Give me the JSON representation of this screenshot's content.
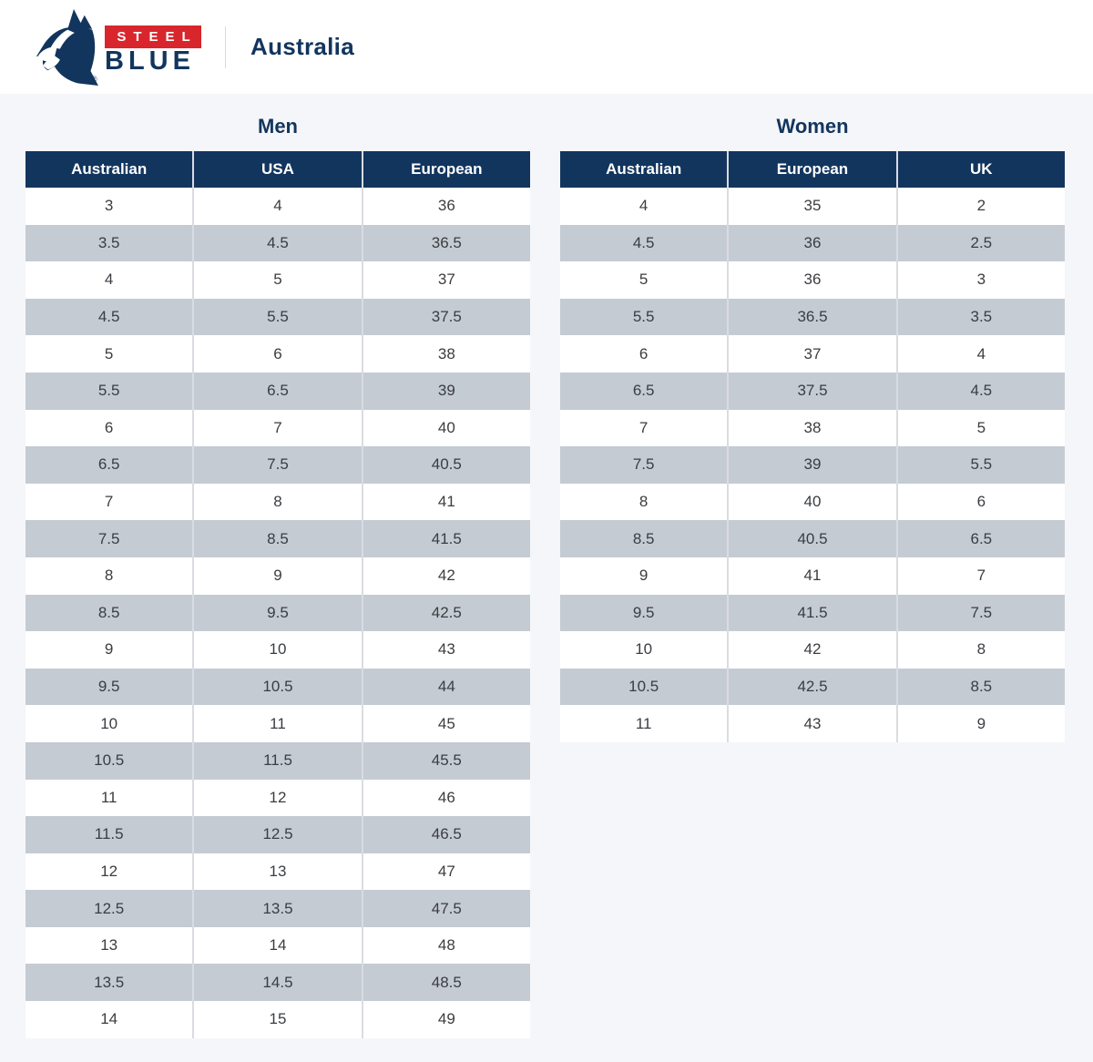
{
  "brand": {
    "steel": "STEEL",
    "blue": "BLUE",
    "registered": "®",
    "region": "Australia"
  },
  "colors": {
    "navy": "#12355e",
    "red": "#d8262c",
    "row_alt": "#c5cbd3",
    "page_bg": "#f5f6f9",
    "separator": "#d9dce1",
    "cell_text": "#3a3d41"
  },
  "men": {
    "title": "Men",
    "headers": [
      "Australian",
      "USA",
      "European"
    ],
    "rows": [
      [
        "3",
        "4",
        "36"
      ],
      [
        "3.5",
        "4.5",
        "36.5"
      ],
      [
        "4",
        "5",
        "37"
      ],
      [
        "4.5",
        "5.5",
        "37.5"
      ],
      [
        "5",
        "6",
        "38"
      ],
      [
        "5.5",
        "6.5",
        "39"
      ],
      [
        "6",
        "7",
        "40"
      ],
      [
        "6.5",
        "7.5",
        "40.5"
      ],
      [
        "7",
        "8",
        "41"
      ],
      [
        "7.5",
        "8.5",
        "41.5"
      ],
      [
        "8",
        "9",
        "42"
      ],
      [
        "8.5",
        "9.5",
        "42.5"
      ],
      [
        "9",
        "10",
        "43"
      ],
      [
        "9.5",
        "10.5",
        "44"
      ],
      [
        "10",
        "11",
        "45"
      ],
      [
        "10.5",
        "11.5",
        "45.5"
      ],
      [
        "11",
        "12",
        "46"
      ],
      [
        "11.5",
        "12.5",
        "46.5"
      ],
      [
        "12",
        "13",
        "47"
      ],
      [
        "12.5",
        "13.5",
        "47.5"
      ],
      [
        "13",
        "14",
        "48"
      ],
      [
        "13.5",
        "14.5",
        "48.5"
      ],
      [
        "14",
        "15",
        "49"
      ]
    ]
  },
  "women": {
    "title": "Women",
    "headers": [
      "Australian",
      "European",
      "UK"
    ],
    "rows": [
      [
        "4",
        "35",
        "2"
      ],
      [
        "4.5",
        "36",
        "2.5"
      ],
      [
        "5",
        "36",
        "3"
      ],
      [
        "5.5",
        "36.5",
        "3.5"
      ],
      [
        "6",
        "37",
        "4"
      ],
      [
        "6.5",
        "37.5",
        "4.5"
      ],
      [
        "7",
        "38",
        "5"
      ],
      [
        "7.5",
        "39",
        "5.5"
      ],
      [
        "8",
        "40",
        "6"
      ],
      [
        "8.5",
        "40.5",
        "6.5"
      ],
      [
        "9",
        "41",
        "7"
      ],
      [
        "9.5",
        "41.5",
        "7.5"
      ],
      [
        "10",
        "42",
        "8"
      ],
      [
        "10.5",
        "42.5",
        "8.5"
      ],
      [
        "11",
        "43",
        "9"
      ]
    ]
  }
}
